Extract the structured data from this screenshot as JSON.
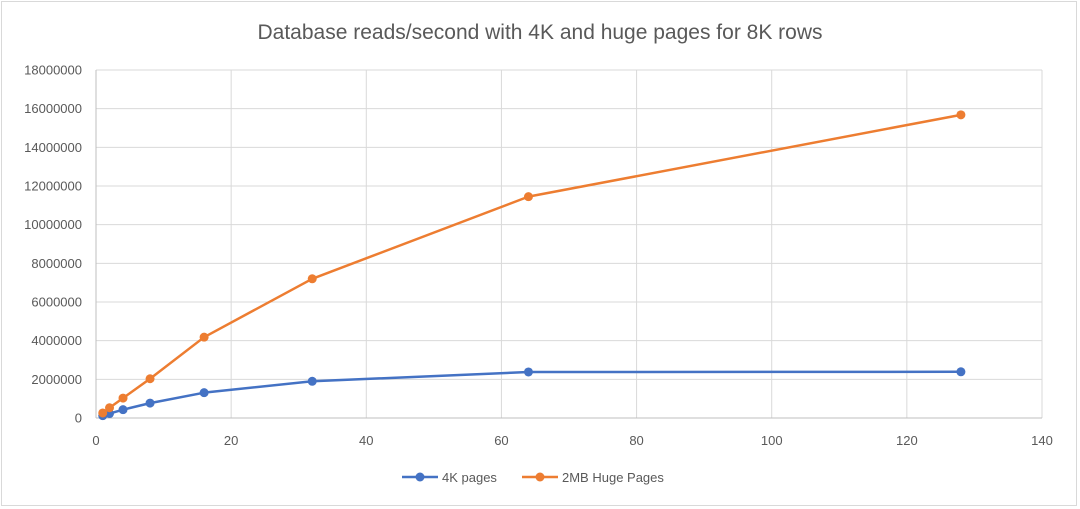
{
  "chart_data": {
    "type": "scatter",
    "title": "Database reads/second with 4K and huge pages for 8K rows",
    "xlabel": "",
    "ylabel": "",
    "xlim": [
      0,
      140
    ],
    "ylim": [
      0,
      18000000
    ],
    "x_ticks": [
      0,
      20,
      40,
      60,
      80,
      100,
      120,
      140
    ],
    "y_ticks": [
      0,
      2000000,
      4000000,
      6000000,
      8000000,
      10000000,
      12000000,
      14000000,
      16000000,
      18000000
    ],
    "x_tick_labels": [
      "0",
      "20",
      "40",
      "60",
      "80",
      "100",
      "120",
      "140"
    ],
    "y_tick_labels": [
      "0",
      "2000000",
      "4000000",
      "6000000",
      "8000000",
      "10000000",
      "12000000",
      "14000000",
      "16000000",
      "18000000"
    ],
    "grid": true,
    "legend": "bottom",
    "series": [
      {
        "name": "4K pages",
        "color": "#4472c4",
        "x": [
          1,
          2,
          4,
          8,
          16,
          32,
          64,
          128
        ],
        "y": [
          120000,
          230000,
          430000,
          770000,
          1310000,
          1900000,
          2380000,
          2390000
        ]
      },
      {
        "name": "2MB Huge Pages",
        "color": "#ed7d31",
        "x": [
          1,
          2,
          4,
          8,
          16,
          32,
          64,
          128
        ],
        "y": [
          260000,
          530000,
          1030000,
          2030000,
          4180000,
          7200000,
          11450000,
          15680000
        ]
      }
    ]
  }
}
